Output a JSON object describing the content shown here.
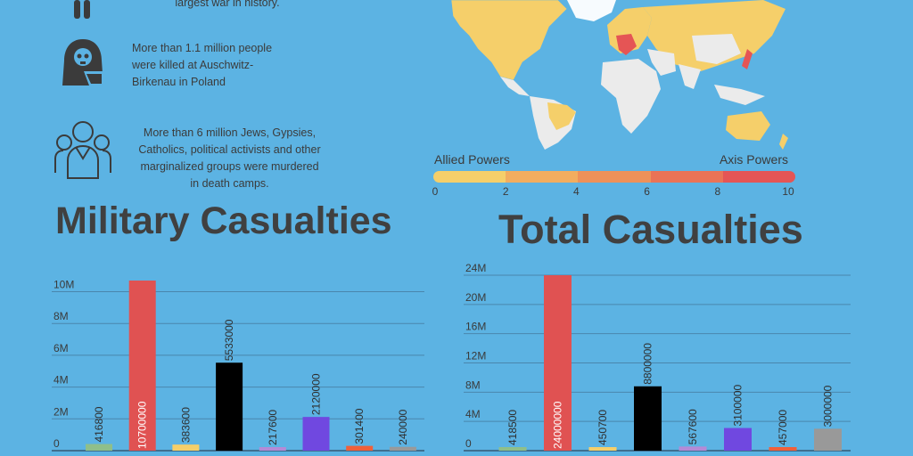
{
  "facts": [
    {
      "lines": [
        "largest war in history."
      ],
      "icon": "soldier-icon"
    },
    {
      "lines": [
        "More than 1.1 million people",
        "were killed at Auschwitz-",
        "Birkenau in Poland"
      ],
      "icon": "hooded-skull-icon"
    },
    {
      "lines": [
        "More than 6 million Jews, Gypsies,",
        "Catholics, political activists and other",
        "marginalized groups were murdered",
        "in death camps."
      ],
      "icon": "group-people-icon"
    }
  ],
  "map": {
    "legend_left": "Allied Powers",
    "legend_right": "Axis Powers",
    "scale_ticks": [
      "0",
      "2",
      "4",
      "6",
      "8",
      "10"
    ],
    "scale_colors": [
      "#f5cf6a",
      "#f2ad5f",
      "#ee9159",
      "#ea7356",
      "#e55555"
    ]
  },
  "chart_data": [
    {
      "type": "bar",
      "title": "Military Casualties",
      "categories": [
        "",
        "",
        "",
        "",
        "",
        "",
        "",
        ""
      ],
      "values": [
        416800,
        10700000,
        383600,
        5533000,
        217600,
        2120000,
        301400,
        240000
      ],
      "value_labels": [
        "416800",
        "10700000",
        "383600",
        "5533000",
        "217600",
        "2120000",
        "301400",
        "240000"
      ],
      "colors": [
        "#8fbf8a",
        "#e05252",
        "#f5cf6a",
        "#000000",
        "#b48ad6",
        "#7048e0",
        "#f0603a",
        "#999999"
      ],
      "yticks": [
        "0",
        "2M",
        "4M",
        "6M",
        "8M",
        "10M"
      ],
      "ytick_values": [
        0,
        2000000,
        4000000,
        6000000,
        8000000,
        10000000
      ],
      "ylim": [
        0,
        10700000
      ],
      "grid": true,
      "xlabel": "",
      "ylabel": ""
    },
    {
      "type": "bar",
      "title": "Total Casualties",
      "categories": [
        "",
        "",
        "",
        "",
        "",
        "",
        "",
        ""
      ],
      "values": [
        418500,
        24000000,
        450700,
        8800000,
        567600,
        3100000,
        457000,
        3000000
      ],
      "value_labels": [
        "418500",
        "24000000",
        "450700",
        "8800000",
        "567600",
        "3100000",
        "457000",
        "3000000"
      ],
      "colors": [
        "#8fbf8a",
        "#e05252",
        "#f5cf6a",
        "#000000",
        "#b48ad6",
        "#7048e0",
        "#f0603a",
        "#999999"
      ],
      "yticks": [
        "0",
        "4M",
        "8M",
        "12M",
        "16M",
        "20M",
        "24M"
      ],
      "ytick_values": [
        0,
        4000000,
        8000000,
        12000000,
        16000000,
        20000000,
        24000000
      ],
      "ylim": [
        0,
        24000000
      ],
      "grid": true,
      "xlabel": "",
      "ylabel": ""
    }
  ]
}
